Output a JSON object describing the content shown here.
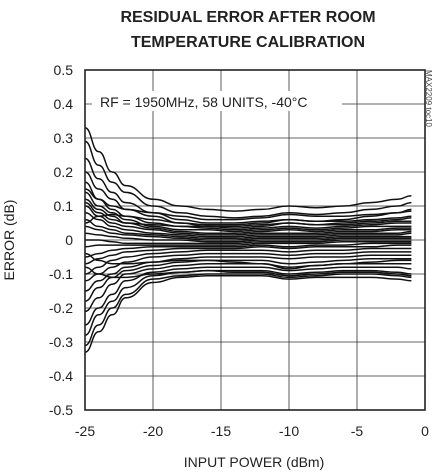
{
  "chart_data": {
    "type": "line",
    "title": [
      "RESIDUAL ERROR AFTER ROOM",
      "TEMPERATURE CALIBRATION"
    ],
    "xlabel": "INPUT POWER (dBm)",
    "ylabel": "ERROR (dB)",
    "xlim": [
      -25,
      0
    ],
    "ylim": [
      -0.5,
      0.5
    ],
    "xticks": [
      -25,
      -20,
      -15,
      -10,
      -5,
      0
    ],
    "xtick_labels": [
      "-25",
      "-20",
      "-15",
      "-10",
      "-5",
      "0"
    ],
    "yticks": [
      -0.5,
      -0.4,
      -0.3,
      -0.2,
      -0.1,
      0,
      0.1,
      0.2,
      0.3,
      0.4,
      0.5
    ],
    "ytick_labels": [
      "-0.5",
      "-0.4",
      "-0.3",
      "-0.2",
      "-0.1",
      "0",
      "0.1",
      "0.2",
      "0.3",
      "0.4",
      "0.5"
    ],
    "grid": true,
    "annotation": "RF = 1950MHz, 58 UNITS, -40°C",
    "watermark": "MAX2209 toc10",
    "x": [
      -25,
      -24,
      -23,
      -22,
      -20,
      -18,
      -16,
      -14,
      -12,
      -10,
      -8,
      -6,
      -4,
      -2,
      -1
    ],
    "series": [
      {
        "values": [
          0.33,
          0.26,
          0.2,
          0.16,
          0.12,
          0.1,
          0.09,
          0.085,
          0.09,
          0.1,
          0.095,
          0.1,
          0.11,
          0.12,
          0.13
        ]
      },
      {
        "values": [
          0.29,
          0.22,
          0.17,
          0.14,
          0.1,
          0.08,
          0.07,
          0.065,
          0.07,
          0.08,
          0.075,
          0.08,
          0.09,
          0.1,
          0.11
        ]
      },
      {
        "values": [
          0.24,
          0.18,
          0.14,
          0.11,
          0.08,
          0.06,
          0.05,
          0.05,
          0.055,
          0.06,
          0.055,
          0.06,
          0.07,
          0.08,
          0.09
        ]
      },
      {
        "values": [
          0.2,
          0.15,
          0.12,
          0.09,
          0.07,
          0.05,
          0.04,
          0.04,
          0.045,
          0.05,
          0.045,
          0.05,
          0.055,
          0.06,
          0.065
        ]
      },
      {
        "values": [
          0.17,
          0.12,
          0.09,
          0.07,
          0.05,
          0.04,
          0.035,
          0.03,
          0.035,
          0.04,
          0.035,
          0.04,
          0.045,
          0.05,
          0.05
        ]
      },
      {
        "values": [
          0.14,
          0.1,
          0.08,
          0.06,
          0.04,
          0.03,
          0.03,
          0.025,
          0.03,
          0.035,
          0.03,
          0.035,
          0.04,
          0.04,
          0.04
        ]
      },
      {
        "values": [
          0.12,
          0.09,
          0.07,
          0.05,
          0.035,
          0.025,
          0.02,
          0.02,
          0.025,
          0.03,
          0.025,
          0.03,
          0.03,
          0.035,
          0.035
        ]
      },
      {
        "values": [
          0.1,
          0.07,
          0.05,
          0.04,
          0.03,
          0.02,
          0.015,
          0.015,
          0.02,
          0.02,
          0.02,
          0.025,
          0.025,
          0.03,
          0.03
        ]
      },
      {
        "values": [
          0.08,
          0.06,
          0.04,
          0.03,
          0.02,
          0.015,
          0.01,
          0.01,
          0.015,
          0.015,
          0.015,
          0.02,
          0.02,
          0.02,
          0.025
        ]
      },
      {
        "values": [
          0.06,
          0.04,
          0.03,
          0.02,
          0.015,
          0.01,
          0.005,
          0.005,
          0.01,
          0.01,
          0.01,
          0.015,
          0.015,
          0.015,
          0.02
        ]
      },
      {
        "values": [
          0.04,
          0.03,
          0.02,
          0.015,
          0.01,
          0.005,
          0.0,
          0.0,
          0.005,
          0.005,
          0.005,
          0.01,
          0.01,
          0.01,
          0.01
        ]
      },
      {
        "values": [
          0.02,
          0.015,
          0.01,
          0.005,
          0.0,
          0.0,
          -0.005,
          -0.005,
          0.0,
          0.0,
          0.0,
          0.005,
          0.005,
          0.005,
          0.005
        ]
      },
      {
        "values": [
          0.0,
          0.0,
          -0.005,
          -0.01,
          -0.01,
          -0.01,
          -0.01,
          -0.01,
          -0.005,
          -0.005,
          -0.005,
          0.0,
          0.0,
          0.0,
          0.0
        ]
      },
      {
        "values": [
          -0.02,
          -0.015,
          -0.015,
          -0.015,
          -0.015,
          -0.015,
          -0.015,
          -0.015,
          -0.01,
          -0.01,
          -0.01,
          -0.005,
          -0.005,
          -0.005,
          -0.005
        ]
      },
      {
        "values": [
          -0.05,
          -0.04,
          -0.03,
          -0.025,
          -0.02,
          -0.02,
          -0.02,
          -0.02,
          -0.015,
          -0.02,
          -0.015,
          -0.015,
          -0.01,
          -0.01,
          -0.01
        ]
      },
      {
        "values": [
          -0.07,
          -0.055,
          -0.045,
          -0.035,
          -0.03,
          -0.025,
          -0.025,
          -0.025,
          -0.02,
          -0.025,
          -0.02,
          -0.02,
          -0.02,
          -0.015,
          -0.015
        ]
      },
      {
        "values": [
          -0.1,
          -0.08,
          -0.06,
          -0.05,
          -0.04,
          -0.035,
          -0.03,
          -0.03,
          -0.03,
          -0.035,
          -0.03,
          -0.03,
          -0.025,
          -0.025,
          -0.025
        ]
      },
      {
        "values": [
          -0.12,
          -0.1,
          -0.08,
          -0.065,
          -0.05,
          -0.045,
          -0.04,
          -0.04,
          -0.04,
          -0.045,
          -0.04,
          -0.04,
          -0.035,
          -0.035,
          -0.035
        ]
      },
      {
        "values": [
          -0.15,
          -0.12,
          -0.1,
          -0.08,
          -0.065,
          -0.055,
          -0.05,
          -0.05,
          -0.05,
          -0.055,
          -0.05,
          -0.05,
          -0.045,
          -0.045,
          -0.045
        ]
      },
      {
        "values": [
          -0.18,
          -0.14,
          -0.11,
          -0.09,
          -0.075,
          -0.065,
          -0.06,
          -0.06,
          -0.06,
          -0.07,
          -0.065,
          -0.06,
          -0.055,
          -0.055,
          -0.055
        ]
      },
      {
        "values": [
          -0.21,
          -0.17,
          -0.13,
          -0.1,
          -0.085,
          -0.075,
          -0.07,
          -0.07,
          -0.07,
          -0.08,
          -0.075,
          -0.07,
          -0.07,
          -0.07,
          -0.07
        ]
      },
      {
        "values": [
          -0.25,
          -0.2,
          -0.16,
          -0.12,
          -0.095,
          -0.085,
          -0.08,
          -0.08,
          -0.08,
          -0.09,
          -0.085,
          -0.08,
          -0.08,
          -0.08,
          -0.085
        ]
      },
      {
        "values": [
          -0.28,
          -0.22,
          -0.18,
          -0.14,
          -0.105,
          -0.095,
          -0.09,
          -0.09,
          -0.09,
          -0.1,
          -0.095,
          -0.09,
          -0.09,
          -0.095,
          -0.1
        ]
      },
      {
        "values": [
          -0.31,
          -0.25,
          -0.2,
          -0.16,
          -0.115,
          -0.105,
          -0.1,
          -0.1,
          -0.1,
          -0.11,
          -0.105,
          -0.1,
          -0.1,
          -0.105,
          -0.11
        ]
      },
      {
        "values": [
          -0.33,
          -0.27,
          -0.22,
          -0.17,
          -0.125,
          -0.11,
          -0.105,
          -0.105,
          -0.105,
          -0.115,
          -0.11,
          -0.11,
          -0.11,
          -0.115,
          -0.12
        ]
      },
      {
        "values": [
          0.15,
          0.12,
          0.1,
          0.09,
          0.08,
          0.07,
          0.06,
          0.06,
          0.065,
          0.075,
          0.07,
          0.07,
          0.075,
          0.08,
          0.085
        ]
      },
      {
        "values": [
          0.11,
          0.08,
          0.06,
          0.05,
          0.045,
          0.04,
          0.04,
          0.035,
          0.04,
          0.05,
          0.045,
          0.045,
          0.05,
          0.055,
          0.055
        ]
      },
      {
        "values": [
          -0.04,
          -0.06,
          -0.07,
          -0.07,
          -0.065,
          -0.06,
          -0.06,
          -0.065,
          -0.07,
          -0.085,
          -0.075,
          -0.07,
          -0.065,
          -0.06,
          -0.06
        ]
      },
      {
        "values": [
          -0.08,
          -0.1,
          -0.11,
          -0.11,
          -0.1,
          -0.095,
          -0.09,
          -0.095,
          -0.095,
          -0.105,
          -0.1,
          -0.095,
          -0.095,
          -0.1,
          -0.105
        ]
      },
      {
        "values": [
          0.05,
          0.07,
          0.075,
          0.07,
          0.06,
          0.05,
          0.045,
          0.045,
          0.05,
          0.06,
          0.055,
          0.055,
          0.06,
          0.065,
          0.07
        ]
      }
    ]
  }
}
